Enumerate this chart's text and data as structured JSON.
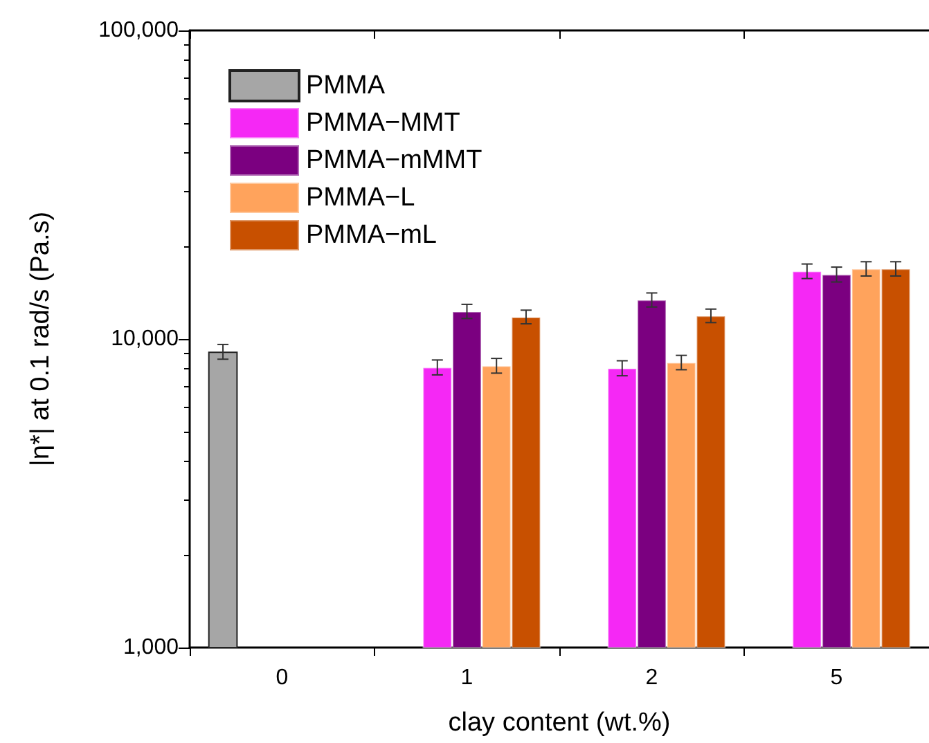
{
  "chart_data": {
    "type": "bar",
    "xlabel": "clay content (wt.%)",
    "ylabel": "|η*| at 0.1 rad/s (Pa.s)",
    "categories": [
      "0",
      "1",
      "2",
      "5"
    ],
    "series": [
      {
        "name": "PMMA",
        "color": "#a6a6a6",
        "values": [
          9100,
          null,
          null,
          null
        ],
        "errors": [
          500,
          null,
          null,
          null
        ]
      },
      {
        "name": "PMMA−MMT",
        "color": "#f528f5",
        "values": [
          null,
          8100,
          8050,
          16600
        ],
        "errors": [
          null,
          450,
          450,
          900
        ]
      },
      {
        "name": "PMMA−mMMT",
        "color": "#7b0080",
        "values": [
          null,
          12300,
          13400,
          16200
        ],
        "errors": [
          null,
          650,
          700,
          900
        ]
      },
      {
        "name": "PMMA−L",
        "color": "#ffa35c",
        "values": [
          null,
          8200,
          8400,
          16900
        ],
        "errors": [
          null,
          450,
          450,
          900
        ]
      },
      {
        "name": "PMMA−mL",
        "color": "#c85000",
        "values": [
          null,
          11800,
          11900,
          16900
        ],
        "errors": [
          null,
          600,
          600,
          900
        ]
      }
    ],
    "log": "y",
    "ylim": [
      1000,
      100000
    ],
    "yticks": [
      {
        "value": 1000,
        "label": "1,000"
      },
      {
        "value": 10000,
        "label": "10,000"
      },
      {
        "value": 100000,
        "label": "100,000"
      }
    ],
    "grid": false,
    "legend": "top left"
  }
}
